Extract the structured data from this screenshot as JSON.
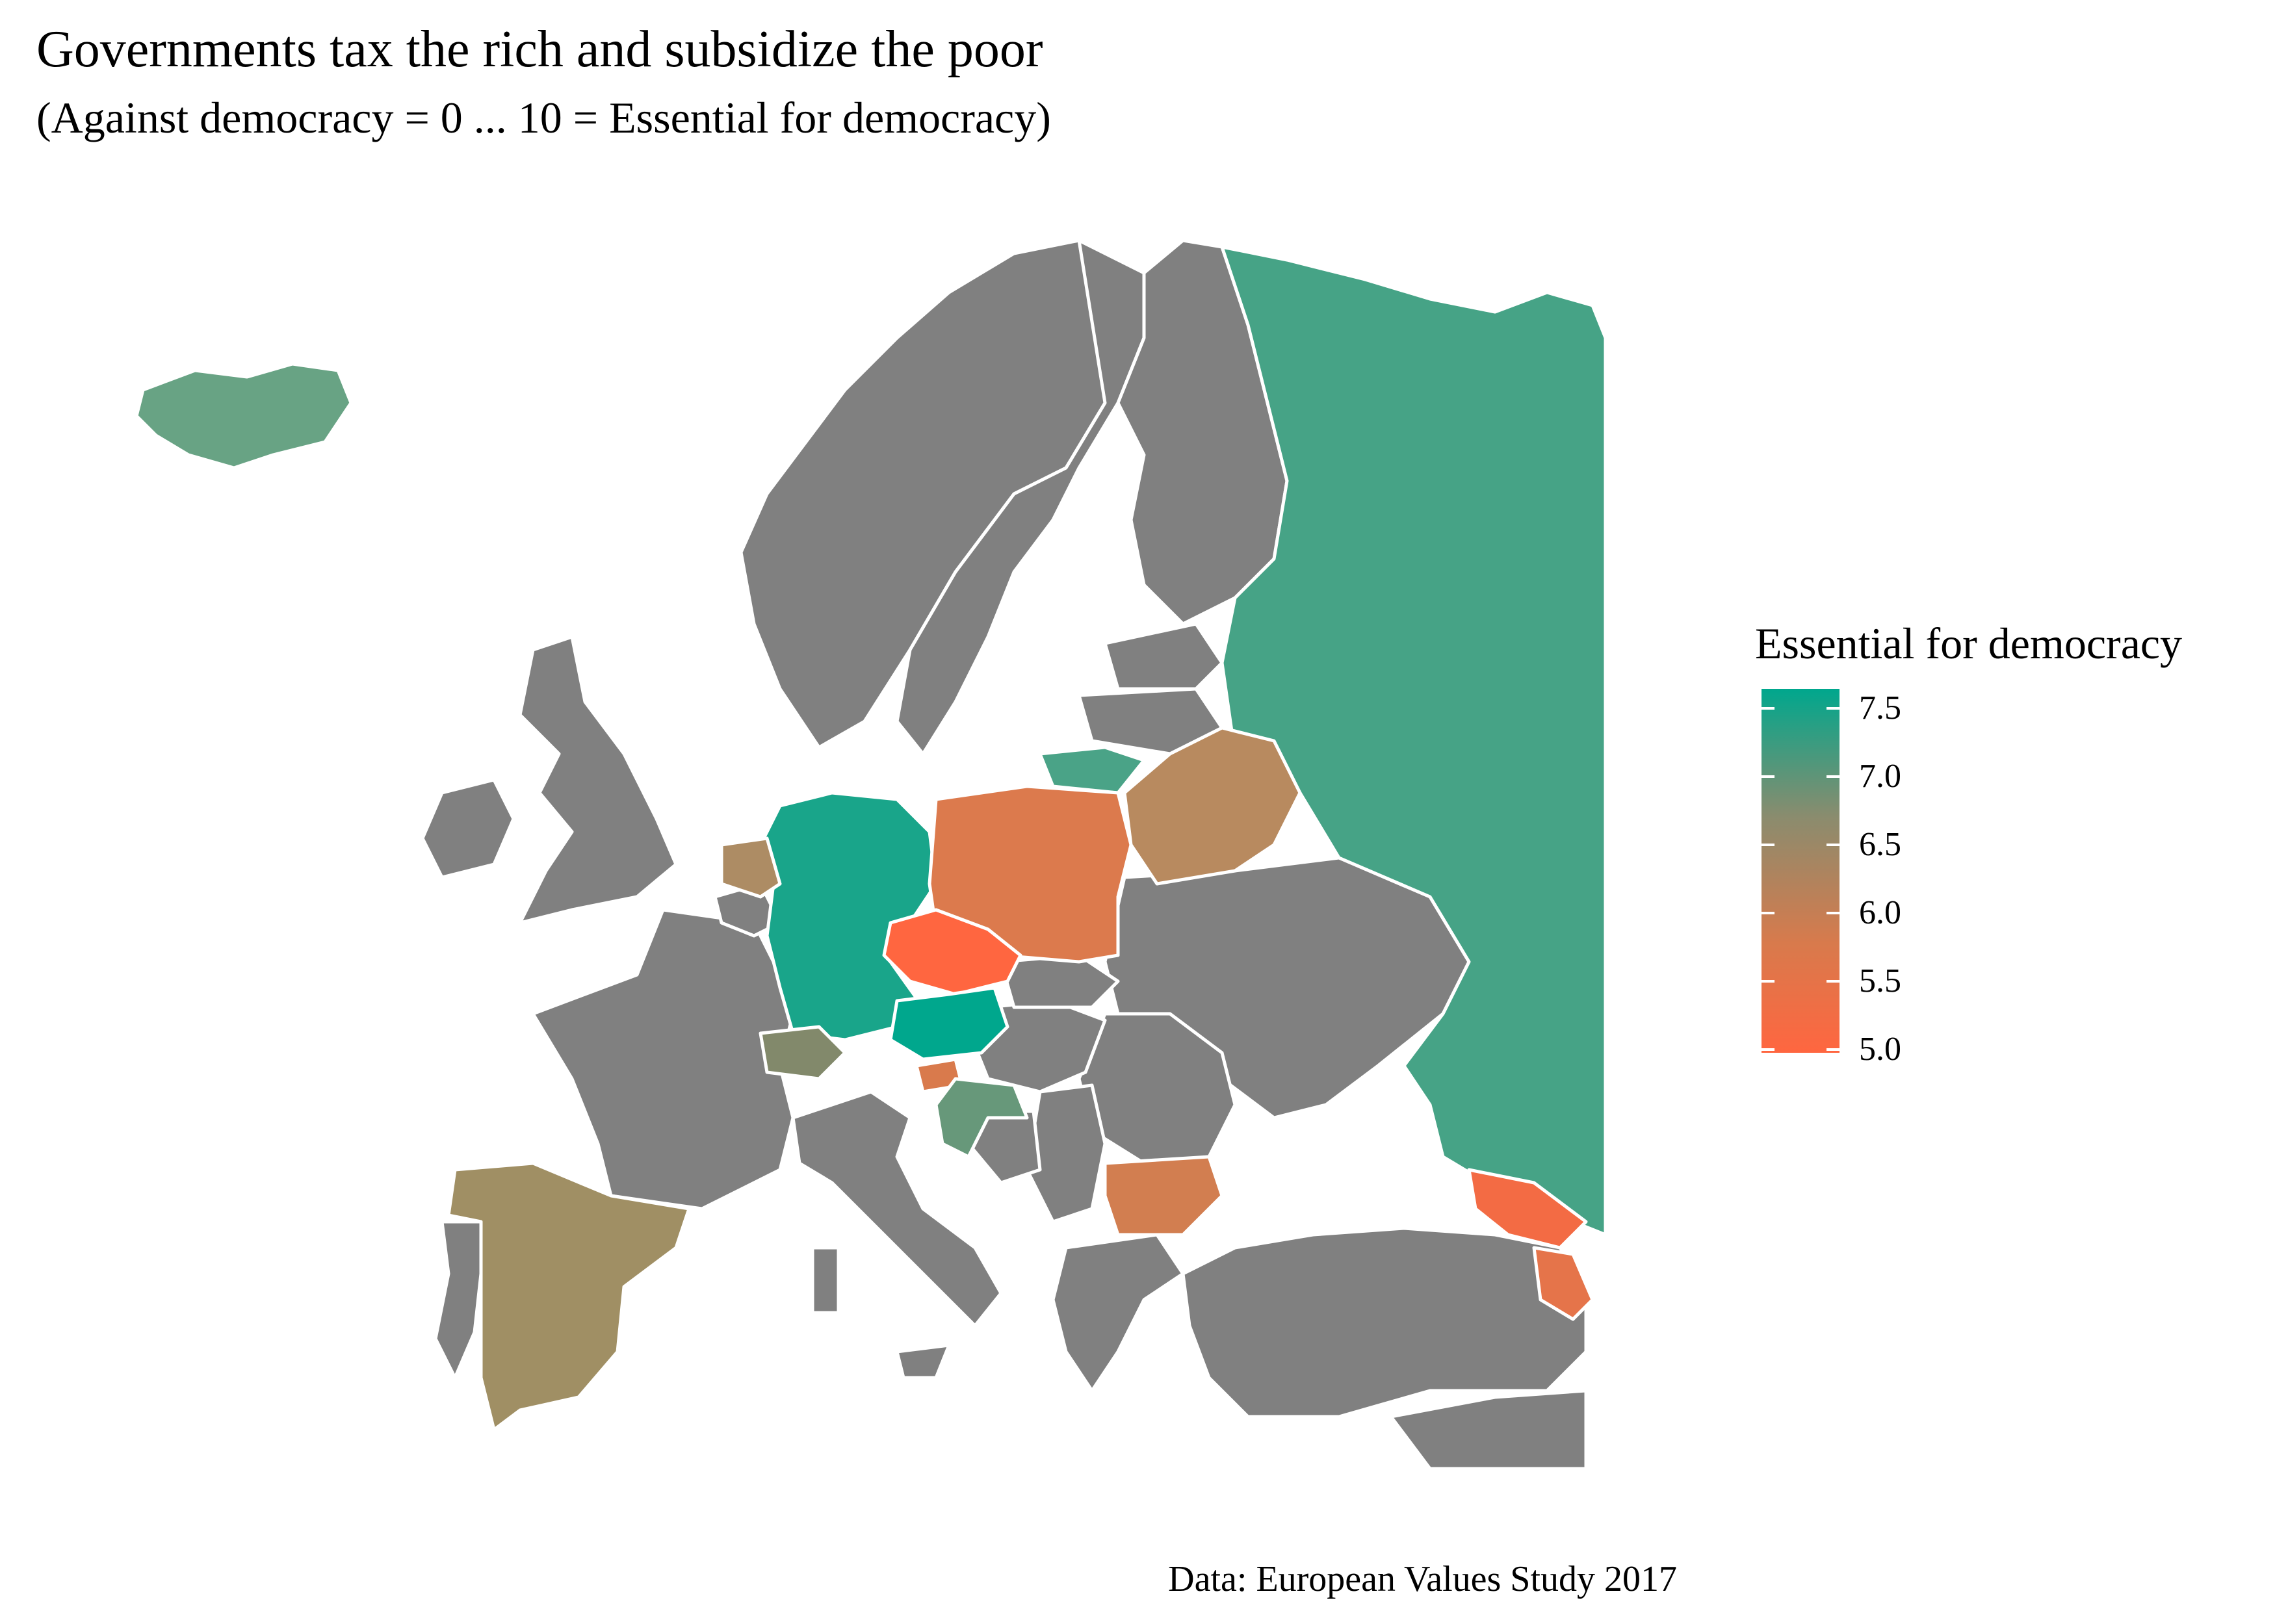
{
  "title": "Governments tax the rich and subsidize the poor",
  "subtitle": "(Against democracy = 0 ... 10 = Essential for democracy)",
  "legend": {
    "title": "Essential for democracy",
    "ticks": [
      "7.5",
      "7.0",
      "6.5",
      "6.0",
      "5.5",
      "5.0"
    ],
    "gradient": [
      "#00A78D",
      "#8A8C6E",
      "#D87A4C",
      "#FF6640"
    ]
  },
  "caption": "Data: European Values Study 2017",
  "colors": {
    "no_data": "#808080",
    "border": "#ffffff",
    "high": "#00A78D",
    "low": "#FF6640"
  },
  "countries": [
    {
      "id": "iceland",
      "value": 7.1
    },
    {
      "id": "russia",
      "value": 7.3
    },
    {
      "id": "lithuania",
      "value": 7.4
    },
    {
      "id": "germany",
      "value": 7.5
    },
    {
      "id": "netherlands",
      "value": 6.4
    },
    {
      "id": "poland",
      "value": 5.7
    },
    {
      "id": "belarus",
      "value": 6.2
    },
    {
      "id": "czechia",
      "value": 4.8
    },
    {
      "id": "austria",
      "value": 7.6
    },
    {
      "id": "switzerland",
      "value": 6.9
    },
    {
      "id": "slovenia",
      "value": 5.5
    },
    {
      "id": "croatia",
      "value": 7.0
    },
    {
      "id": "spain",
      "value": 6.5
    },
    {
      "id": "bulgaria",
      "value": 5.8
    },
    {
      "id": "georgia",
      "value": 5.2
    },
    {
      "id": "armenia",
      "value": 5.4
    }
  ]
}
